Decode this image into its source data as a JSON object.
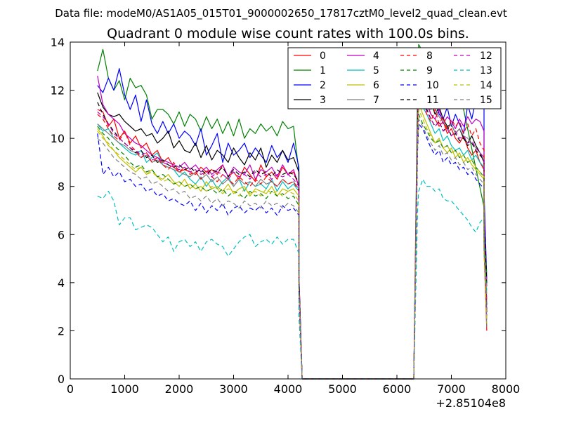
{
  "figure": {
    "suptitle": "Data file: modeM0/AS1A05_015T01_9000002650_17817cztM0_level2_quad_clean.evt"
  },
  "chart_data": {
    "type": "line",
    "title": "Quadrant 0 module wise count rates with 100.0s bins.",
    "xlabel": "",
    "ylabel": "",
    "xlim": [
      0,
      8000
    ],
    "ylim": [
      0,
      14
    ],
    "xticks": [
      0,
      1000,
      2000,
      3000,
      4000,
      5000,
      6000,
      7000,
      8000
    ],
    "yticks": [
      0,
      2,
      4,
      6,
      8,
      10,
      12,
      14
    ],
    "xtick_labels": [
      "0",
      "1000",
      "2000",
      "3000",
      "4000",
      "5000",
      "6000",
      "7000",
      "8000"
    ],
    "ytick_labels": [
      "0",
      "2",
      "4",
      "6",
      "8",
      "10",
      "12",
      "14"
    ],
    "x_offset_label": "+2.85104e8",
    "legend_position": "top-right",
    "legend_columns": 4,
    "gap": {
      "drop_start": 4200,
      "low_start": 4260,
      "low_end": 6310,
      "rise_end": 6380
    },
    "series": [
      {
        "name": "0",
        "color": "#ff0000",
        "dash": "solid",
        "seg1": [
          11.2,
          11.1,
          10.5,
          10.8,
          10.0,
          10.3,
          9.8,
          10.1,
          9.6,
          9.8,
          9.3,
          9.5,
          9.0,
          9.2,
          8.8,
          8.6,
          8.7,
          8.6,
          8.5,
          8.8,
          8.6,
          8.7,
          8.5,
          8.9,
          8.4,
          8.6,
          8.3,
          8.8,
          8.5,
          8.2,
          8.9,
          8.4,
          8.6,
          8.3,
          8.8,
          8.5,
          8.6,
          8.0
        ],
        "seg2": [
          11.8,
          12.3,
          11.5,
          11.0,
          10.8,
          10.5,
          10.7,
          10.2,
          10.4,
          10.0,
          9.8,
          10.1,
          9.6,
          9.3,
          9.5,
          9.0,
          8.7
        ]
      },
      {
        "name": "1",
        "color": "#008000",
        "dash": "solid",
        "seg1": [
          12.8,
          13.7,
          12.5,
          12.0,
          12.4,
          11.6,
          12.5,
          12.1,
          12.2,
          11.8,
          10.8,
          11.2,
          11.2,
          11.0,
          10.6,
          11.1,
          10.5,
          11.0,
          10.8,
          10.3,
          10.9,
          10.4,
          10.8,
          10.2,
          10.7,
          10.1,
          10.8,
          10.0,
          10.4,
          10.2,
          10.6,
          10.3,
          10.5,
          10.1,
          10.7,
          10.4,
          10.5,
          8.6
        ],
        "seg2": [
          13.9,
          13.6,
          13.1,
          13.3,
          13.2,
          13.0,
          13.3,
          13.1,
          12.6,
          12.4,
          12.2,
          11.2
        ]
      },
      {
        "name": "2",
        "color": "#0000ff",
        "dash": "solid",
        "seg1": [
          12.2,
          11.9,
          12.5,
          12.0,
          12.9,
          11.8,
          11.2,
          11.8,
          10.7,
          11.6,
          10.6,
          10.2,
          10.7,
          10.2,
          10.6,
          10.0,
          10.3,
          10.1,
          9.7,
          10.4,
          9.3,
          9.7,
          10.2,
          9.0,
          9.8,
          9.3,
          9.5,
          9.8,
          9.2,
          9.6,
          9.3,
          9.0,
          9.7,
          9.2,
          9.5,
          9.0,
          9.8,
          8.8
        ],
        "seg2": [
          12.4,
          12.0,
          11.5,
          11.2,
          11.8,
          11.0,
          10.8,
          11.3,
          10.5,
          11.0,
          10.6,
          10.2,
          11.4,
          10.8,
          11.6,
          11.3,
          11.5
        ]
      },
      {
        "name": "3",
        "color": "#000000",
        "dash": "solid",
        "seg1": [
          11.9,
          11.3,
          11.0,
          10.9,
          11.0,
          10.7,
          10.5,
          10.3,
          10.4,
          10.1,
          10.2,
          9.8,
          10.0,
          10.3,
          9.6,
          9.9,
          9.5,
          9.4,
          9.8,
          9.2,
          9.7,
          9.1,
          9.5,
          9.3,
          9.0,
          9.6,
          9.2,
          8.9,
          9.4,
          9.1,
          9.6,
          8.8,
          9.3,
          9.0,
          9.5,
          9.1,
          9.2,
          8.6
        ],
        "seg2": [
          12.3,
          13.1,
          12.0,
          11.5,
          11.0,
          11.3,
          10.8,
          10.5,
          10.6,
          10.2,
          10.4,
          10.0,
          9.8,
          10.1,
          9.7,
          9.4,
          9.0
        ]
      },
      {
        "name": "4",
        "color": "#bf00bf",
        "dash": "solid",
        "seg1": [
          12.6,
          11.4,
          11.0,
          10.8,
          10.6,
          10.2,
          10.0,
          9.8,
          9.7,
          9.5,
          9.3,
          9.2,
          9.1,
          9.0,
          8.9,
          8.8,
          9.0,
          8.7,
          8.9,
          8.6,
          8.8,
          8.5,
          8.7,
          8.9,
          8.4,
          8.8,
          8.6,
          8.5,
          8.9,
          8.3,
          8.7,
          8.6,
          8.8,
          8.4,
          8.9,
          8.5,
          8.7,
          8.0
        ],
        "seg2": [
          12.8,
          11.8,
          11.4,
          11.0,
          10.8,
          11.2,
          10.6,
          10.9,
          10.7,
          10.4,
          10.8,
          10.5,
          10.9,
          10.6,
          10.8,
          10.7,
          10.3
        ]
      },
      {
        "name": "5",
        "color": "#00bfbf",
        "dash": "solid",
        "seg1": [
          10.6,
          10.3,
          10.4,
          10.0,
          9.8,
          9.6,
          9.4,
          9.3,
          9.5,
          9.0,
          9.2,
          9.4,
          8.9,
          8.8,
          8.7,
          8.4,
          8.6,
          8.3,
          8.1,
          8.4,
          8.0,
          8.3,
          7.9,
          8.2,
          8.4,
          8.0,
          8.3,
          7.8,
          8.2,
          8.0,
          8.1,
          7.9,
          8.3,
          7.8,
          8.2,
          7.9,
          8.1,
          7.8
        ],
        "seg2": [
          12.0,
          11.3,
          11.0,
          10.6,
          10.2,
          10.4,
          9.9,
          10.1,
          9.7,
          9.5,
          9.6,
          9.3,
          9.5,
          9.1,
          9.3,
          9.0,
          8.8
        ]
      },
      {
        "name": "6",
        "color": "#bfbf00",
        "dash": "solid",
        "seg1": [
          10.4,
          10.1,
          9.7,
          9.5,
          9.2,
          9.0,
          8.8,
          8.6,
          8.8,
          8.5,
          8.7,
          8.4,
          8.3,
          8.5,
          8.2,
          8.0,
          8.3,
          7.9,
          8.1,
          7.8,
          8.2,
          7.9,
          8.0,
          7.8,
          8.1,
          7.7,
          7.9,
          8.0,
          7.6,
          7.9,
          7.8,
          7.7,
          8.0,
          7.6,
          7.9,
          7.8,
          7.9,
          7.6
        ],
        "seg2": [
          11.5,
          11.0,
          10.6,
          10.2,
          9.8,
          10.0,
          9.6,
          9.4,
          9.6,
          9.2,
          9.4,
          9.0,
          9.2,
          8.9,
          8.7,
          8.5,
          8.3
        ]
      },
      {
        "name": "7",
        "color": "#808080",
        "dash": "solid",
        "seg1": [
          10.6,
          10.4,
          10.2,
          10.0,
          9.8,
          9.7,
          9.5,
          9.4,
          9.2,
          9.3,
          9.0,
          9.1,
          8.9,
          8.8,
          8.7,
          8.6,
          8.5,
          8.4,
          8.6,
          8.3,
          8.5,
          8.2,
          8.4,
          8.1,
          8.3,
          8.0,
          8.3,
          8.1,
          8.2,
          8.0,
          8.3,
          8.1,
          8.2,
          8.0,
          8.3,
          8.1,
          8.2,
          7.9
        ],
        "seg2": [
          12.5,
          13.2,
          12.0,
          11.6,
          11.2,
          10.9,
          10.7,
          10.4,
          10.6,
          10.2,
          10.4,
          10.1,
          10.0,
          9.8,
          9.6,
          9.4,
          9.2
        ]
      },
      {
        "name": "8",
        "color": "#ff0000",
        "dash": "dashed",
        "seg1": [
          11.0,
          10.8,
          10.4,
          10.1,
          9.9,
          10.3,
          9.7,
          9.5,
          9.2,
          9.4,
          9.0,
          9.2,
          8.9,
          8.7,
          9.0,
          8.6,
          8.8,
          8.5,
          8.6,
          8.3,
          8.7,
          8.4,
          8.2,
          8.5,
          8.3,
          8.1,
          8.4,
          8.2,
          8.0,
          8.3,
          8.1,
          8.4,
          8.2,
          8.0,
          8.3,
          8.1,
          8.2,
          7.8
        ],
        "seg2": [
          11.8,
          11.4,
          11.0,
          10.7,
          11.2,
          10.6,
          10.9,
          10.3,
          10.8,
          10.5,
          10.7,
          10.2,
          10.6,
          10.1,
          10.4,
          9.8,
          9.5
        ]
      },
      {
        "name": "9",
        "color": "#008000",
        "dash": "dashed",
        "seg1": [
          10.5,
          10.2,
          10.0,
          9.7,
          9.5,
          9.3,
          9.0,
          8.8,
          8.9,
          8.6,
          8.7,
          8.4,
          8.5,
          8.3,
          8.1,
          8.2,
          8.0,
          8.1,
          7.9,
          8.0,
          7.8,
          7.9,
          7.7,
          7.9,
          7.6,
          7.8,
          7.7,
          7.5,
          7.8,
          7.6,
          7.7,
          7.5,
          7.8,
          7.6,
          7.7,
          7.5,
          7.6,
          7.2
        ],
        "seg2": [
          11.0,
          10.6,
          10.3,
          10.0,
          9.8,
          9.9,
          9.6,
          9.7,
          9.4,
          9.5,
          9.2,
          9.3,
          9.0,
          9.1,
          8.8,
          8.6,
          8.4
        ]
      },
      {
        "name": "10",
        "color": "#0000ff",
        "dash": "dashed",
        "seg1": [
          10.2,
          8.5,
          8.8,
          8.4,
          8.6,
          8.2,
          8.3,
          8.0,
          8.1,
          7.8,
          7.9,
          7.6,
          7.7,
          7.4,
          7.5,
          7.3,
          7.2,
          7.4,
          7.0,
          7.3,
          6.9,
          7.2,
          7.0,
          7.3,
          6.8,
          7.1,
          7.2,
          6.9,
          7.1,
          7.0,
          7.2,
          6.9,
          7.1,
          6.8,
          7.2,
          7.0,
          7.1,
          6.8
        ],
        "seg2": [
          10.6,
          10.4,
          10.0,
          9.6,
          9.3,
          9.5,
          9.0,
          9.2,
          8.9,
          9.0,
          8.7,
          8.8,
          8.5,
          8.6,
          8.3,
          8.1,
          7.9
        ]
      },
      {
        "name": "11",
        "color": "#000000",
        "dash": "dashed",
        "seg1": [
          11.5,
          11.0,
          10.6,
          10.3,
          10.0,
          9.8,
          9.6,
          9.4,
          9.5,
          9.2,
          9.3,
          9.0,
          9.1,
          8.9,
          8.8,
          8.9,
          8.7,
          8.8,
          8.6,
          8.7,
          8.5,
          8.7,
          8.6,
          8.8,
          8.4,
          8.7,
          8.5,
          8.6,
          8.4,
          8.7,
          8.5,
          8.6,
          8.4,
          8.7,
          8.5,
          8.6,
          8.5,
          8.2
        ],
        "seg2": [
          12.0,
          11.6,
          11.2,
          10.8,
          10.5,
          10.7,
          10.3,
          10.5,
          10.1,
          10.2,
          9.9,
          10.0,
          9.7,
          9.8,
          9.5,
          9.3,
          9.1
        ]
      },
      {
        "name": "12",
        "color": "#bf00bf",
        "dash": "dashed",
        "seg1": [
          11.1,
          10.9,
          10.6,
          10.2,
          10.0,
          9.8,
          9.6,
          9.5,
          9.3,
          9.4,
          9.1,
          9.2,
          9.0,
          8.9,
          8.8,
          8.7,
          8.8,
          8.6,
          8.7,
          8.5,
          8.6,
          8.4,
          8.6,
          8.5,
          8.3,
          8.6,
          8.4,
          8.5,
          8.3,
          8.6,
          8.4,
          8.5,
          8.3,
          8.5,
          8.4,
          8.5,
          8.3,
          8.0
        ],
        "seg2": [
          11.9,
          11.5,
          11.1,
          10.8,
          10.5,
          10.7,
          10.3,
          10.4,
          10.1,
          10.3,
          10.0,
          10.1,
          9.8,
          9.9,
          9.6,
          9.4,
          9.2
        ]
      },
      {
        "name": "13",
        "color": "#00bfbf",
        "dash": "dashed",
        "seg1": [
          7.6,
          7.5,
          7.8,
          7.4,
          6.4,
          6.7,
          6.7,
          6.2,
          6.3,
          6.4,
          6.3,
          6.0,
          5.7,
          5.9,
          5.3,
          5.7,
          5.8,
          5.5,
          5.7,
          5.3,
          5.7,
          5.8,
          5.6,
          5.5,
          5.1,
          5.4,
          5.7,
          5.9,
          6.0,
          5.5,
          5.7,
          5.8,
          5.6,
          5.9,
          5.6,
          5.8,
          5.8,
          5.2
        ],
        "seg2": [
          7.8,
          8.3,
          8.0,
          8.0,
          7.8,
          7.9,
          7.5,
          7.4,
          7.4,
          7.2,
          7.0,
          6.8,
          6.6,
          6.3,
          6.1,
          6.5,
          6.7
        ]
      },
      {
        "name": "14",
        "color": "#bfbf00",
        "dash": "dashed",
        "seg1": [
          10.3,
          10.0,
          9.8,
          9.5,
          9.3,
          9.1,
          8.9,
          8.7,
          8.8,
          8.5,
          8.6,
          8.4,
          8.2,
          8.3,
          8.1,
          8.2,
          8.0,
          8.1,
          7.9,
          8.0,
          7.8,
          8.0,
          7.9,
          7.7,
          7.9,
          7.8,
          7.6,
          7.9,
          7.7,
          7.8,
          7.6,
          7.9,
          7.7,
          7.8,
          7.6,
          7.8,
          7.7,
          7.4
        ],
        "seg2": [
          11.2,
          10.8,
          10.4,
          10.1,
          9.8,
          10.0,
          9.6,
          9.7,
          9.4,
          9.5,
          9.2,
          9.3,
          9.0,
          9.1,
          8.8,
          8.6,
          8.4
        ]
      },
      {
        "name": "15",
        "color": "#808080",
        "dash": "dashed",
        "seg1": [
          10.0,
          9.8,
          9.5,
          9.2,
          9.0,
          8.8,
          8.6,
          8.5,
          8.3,
          8.4,
          8.1,
          8.2,
          8.0,
          7.8,
          7.9,
          7.7,
          7.8,
          7.5,
          7.6,
          7.4,
          7.6,
          7.3,
          7.5,
          7.2,
          7.4,
          7.3,
          7.1,
          7.4,
          7.2,
          7.3,
          7.1,
          7.4,
          7.2,
          7.3,
          7.1,
          7.3,
          7.2,
          6.9
        ],
        "seg2": [
          10.8,
          10.5,
          10.1,
          9.8,
          9.5,
          9.7,
          9.3,
          9.4,
          9.1,
          9.2,
          8.9,
          9.0,
          8.7,
          8.8,
          8.5,
          8.3,
          8.1
        ]
      }
    ],
    "segments": {
      "seg1_x_start": 500,
      "seg1_x_step": 100,
      "seg2_x_start": 6400,
      "seg2_x_step": 75,
      "tail": {
        "x": [
          7600,
          7650
        ],
        "y_min": 2.0,
        "y_max": 4.3
      }
    }
  }
}
